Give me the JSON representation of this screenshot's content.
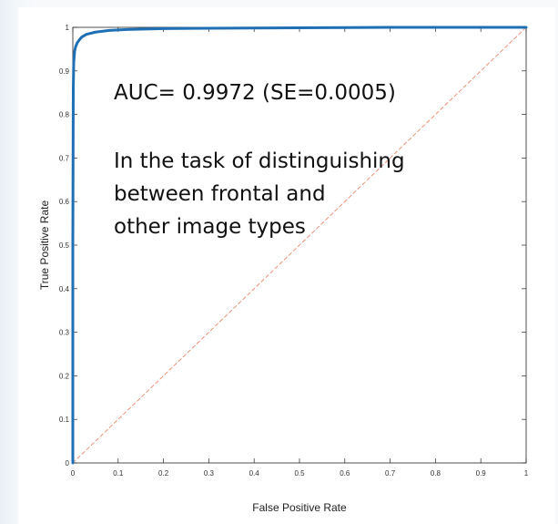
{
  "chart_data": {
    "type": "line",
    "xlabel": "False Positive Rate",
    "ylabel": "True Positive Rate",
    "xlim": [
      0,
      1
    ],
    "ylim": [
      0,
      1
    ],
    "xticks": [
      "0",
      "0.1",
      "0.2",
      "0.3",
      "0.4",
      "0.5",
      "0.6",
      "0.7",
      "0.8",
      "0.9",
      "1"
    ],
    "yticks": [
      "0",
      "0.1",
      "0.2",
      "0.3",
      "0.4",
      "0.5",
      "0.6",
      "0.7",
      "0.8",
      "0.9",
      "1"
    ],
    "grid": false,
    "series": [
      {
        "color": "#1f6fb4",
        "x": [
          0,
          0,
          0.001,
          0.002,
          0.004,
          0.006,
          0.01,
          0.015,
          0.02,
          0.03,
          0.05,
          0.08,
          0.12,
          0.2,
          0.3,
          0.5,
          0.7,
          1.0
        ],
        "y": [
          0,
          0.5,
          0.86,
          0.92,
          0.945,
          0.955,
          0.965,
          0.972,
          0.978,
          0.984,
          0.989,
          0.993,
          0.995,
          0.997,
          0.998,
          0.999,
          1.0,
          1.0
        ]
      },
      {
        "color": "#e8876a",
        "style": "dashed",
        "x": [
          0,
          1
        ],
        "y": [
          0,
          1
        ]
      }
    ],
    "annotations": [
      "AUC= 0.9972 (SE=0.0005)",
      "In the task of distinguishing",
      "between frontal and",
      "other image types"
    ]
  }
}
